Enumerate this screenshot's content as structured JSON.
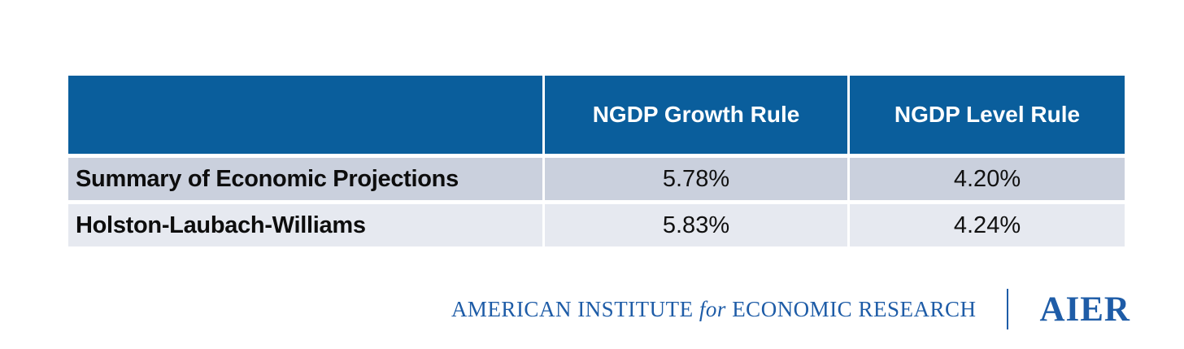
{
  "chart_data": {
    "type": "table",
    "title": "",
    "columns": [
      "",
      "NGDP Growth Rule",
      "NGDP Level Rule"
    ],
    "rows": [
      [
        "Summary of Economic Projections",
        "5.78%",
        "4.20%"
      ],
      [
        "Holston-Laubach-Williams",
        "5.83%",
        "4.24%"
      ]
    ],
    "numeric_values": {
      "Summary of Economic Projections": {
        "NGDP Growth Rule": 5.78,
        "NGDP Level Rule": 4.2
      },
      "Holston-Laubach-Williams": {
        "NGDP Growth Rule": 5.83,
        "NGDP Level Rule": 4.24
      }
    },
    "value_unit": "%"
  },
  "table": {
    "corner_label": "",
    "columns": [
      {
        "label": ""
      },
      {
        "label": "NGDP Growth Rule"
      },
      {
        "label": "NGDP Level Rule"
      }
    ],
    "rows": [
      {
        "label": "Summary of Economic Projections",
        "values": [
          "5.78%",
          "4.20%"
        ]
      },
      {
        "label": "Holston-Laubach-Williams",
        "values": [
          "5.83%",
          "4.24%"
        ]
      }
    ]
  },
  "footer": {
    "org_name_part1": "AMERICAN INSTITUTE",
    "org_name_for": "for",
    "org_name_part2": "ECONOMIC RESEARCH",
    "logo_text": "AIER"
  },
  "colors": {
    "header_blue": "#0a5e9c",
    "row1_bg": "#cad0dd",
    "row2_bg": "#e6e9f0",
    "footer_blue": "#1e5ca7",
    "text_black": "#0d0d0d",
    "page_bg": "#ffffff"
  }
}
